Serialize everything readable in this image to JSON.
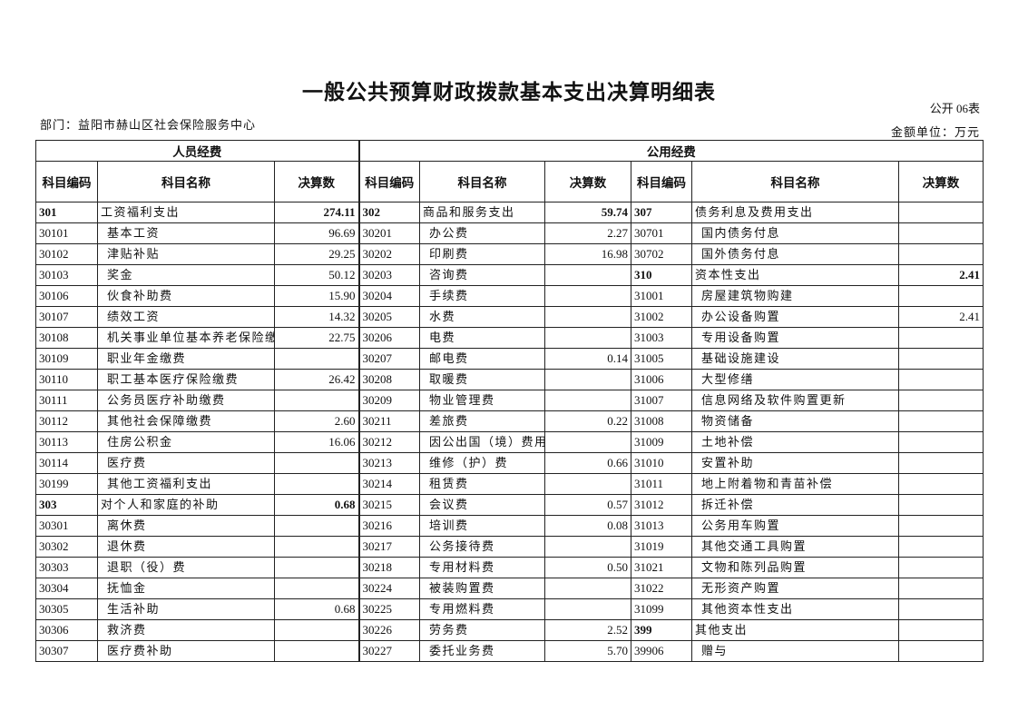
{
  "title": "一般公共预算财政拨款基本支出决算明细表",
  "form_no": "公开 06表",
  "department": "部门：益阳市赫山区社会保险服务中心",
  "unit": "金额单位：万元",
  "groups": {
    "personnel": "人员经费",
    "public": "公用经费"
  },
  "columns": {
    "code": "科目编码",
    "name": "科目名称",
    "amount": "决算数"
  },
  "rows": [
    [
      [
        "301",
        "工资福利支出",
        "274.11"
      ],
      [
        "302",
        "商品和服务支出",
        "59.74"
      ],
      [
        "307",
        "债务利息及费用支出",
        ""
      ]
    ],
    [
      [
        "30101",
        "基本工资",
        "96.69"
      ],
      [
        "30201",
        "办公费",
        "2.27"
      ],
      [
        "30701",
        "国内债务付息",
        ""
      ]
    ],
    [
      [
        "30102",
        "津贴补贴",
        "29.25"
      ],
      [
        "30202",
        "印刷费",
        "16.98"
      ],
      [
        "30702",
        "国外债务付息",
        ""
      ]
    ],
    [
      [
        "30103",
        "奖金",
        "50.12"
      ],
      [
        "30203",
        "咨询费",
        ""
      ],
      [
        "310",
        "资本性支出",
        "2.41"
      ]
    ],
    [
      [
        "30106",
        "伙食补助费",
        "15.90"
      ],
      [
        "30204",
        "手续费",
        ""
      ],
      [
        "31001",
        "房屋建筑物购建",
        ""
      ]
    ],
    [
      [
        "30107",
        "绩效工资",
        "14.32"
      ],
      [
        "30205",
        "水费",
        ""
      ],
      [
        "31002",
        "办公设备购置",
        "2.41"
      ]
    ],
    [
      [
        "30108",
        "机关事业单位基本养老保险缴费",
        "22.75"
      ],
      [
        "30206",
        "电费",
        ""
      ],
      [
        "31003",
        "专用设备购置",
        ""
      ]
    ],
    [
      [
        "30109",
        "职业年金缴费",
        ""
      ],
      [
        "30207",
        "邮电费",
        "0.14"
      ],
      [
        "31005",
        "基础设施建设",
        ""
      ]
    ],
    [
      [
        "30110",
        "职工基本医疗保险缴费",
        "26.42"
      ],
      [
        "30208",
        "取暖费",
        ""
      ],
      [
        "31006",
        "大型修缮",
        ""
      ]
    ],
    [
      [
        "30111",
        "公务员医疗补助缴费",
        ""
      ],
      [
        "30209",
        "物业管理费",
        ""
      ],
      [
        "31007",
        "信息网络及软件购置更新",
        ""
      ]
    ],
    [
      [
        "30112",
        "其他社会保障缴费",
        "2.60"
      ],
      [
        "30211",
        "差旅费",
        "0.22"
      ],
      [
        "31008",
        "物资储备",
        ""
      ]
    ],
    [
      [
        "30113",
        "住房公积金",
        "16.06"
      ],
      [
        "30212",
        "因公出国（境）费用",
        ""
      ],
      [
        "31009",
        "土地补偿",
        ""
      ]
    ],
    [
      [
        "30114",
        "医疗费",
        ""
      ],
      [
        "30213",
        "维修（护）费",
        "0.66"
      ],
      [
        "31010",
        "安置补助",
        ""
      ]
    ],
    [
      [
        "30199",
        "其他工资福利支出",
        ""
      ],
      [
        "30214",
        "租赁费",
        ""
      ],
      [
        "31011",
        "地上附着物和青苗补偿",
        ""
      ]
    ],
    [
      [
        "303",
        "对个人和家庭的补助",
        "0.68"
      ],
      [
        "30215",
        "会议费",
        "0.57"
      ],
      [
        "31012",
        "拆迁补偿",
        ""
      ]
    ],
    [
      [
        "30301",
        "离休费",
        ""
      ],
      [
        "30216",
        "培训费",
        "0.08"
      ],
      [
        "31013",
        "公务用车购置",
        ""
      ]
    ],
    [
      [
        "30302",
        "退休费",
        ""
      ],
      [
        "30217",
        "公务接待费",
        ""
      ],
      [
        "31019",
        "其他交通工具购置",
        ""
      ]
    ],
    [
      [
        "30303",
        "退职（役）费",
        ""
      ],
      [
        "30218",
        "专用材料费",
        "0.50"
      ],
      [
        "31021",
        "文物和陈列品购置",
        ""
      ]
    ],
    [
      [
        "30304",
        "抚恤金",
        ""
      ],
      [
        "30224",
        "被装购置费",
        ""
      ],
      [
        "31022",
        "无形资产购置",
        ""
      ]
    ],
    [
      [
        "30305",
        "生活补助",
        "0.68"
      ],
      [
        "30225",
        "专用燃料费",
        ""
      ],
      [
        "31099",
        "其他资本性支出",
        ""
      ]
    ],
    [
      [
        "30306",
        "救济费",
        ""
      ],
      [
        "30226",
        "劳务费",
        "2.52"
      ],
      [
        "399",
        "其他支出",
        ""
      ]
    ],
    [
      [
        "30307",
        "医疗费补助",
        ""
      ],
      [
        "30227",
        "委托业务费",
        "5.70"
      ],
      [
        "39906",
        "赠与",
        ""
      ]
    ]
  ]
}
